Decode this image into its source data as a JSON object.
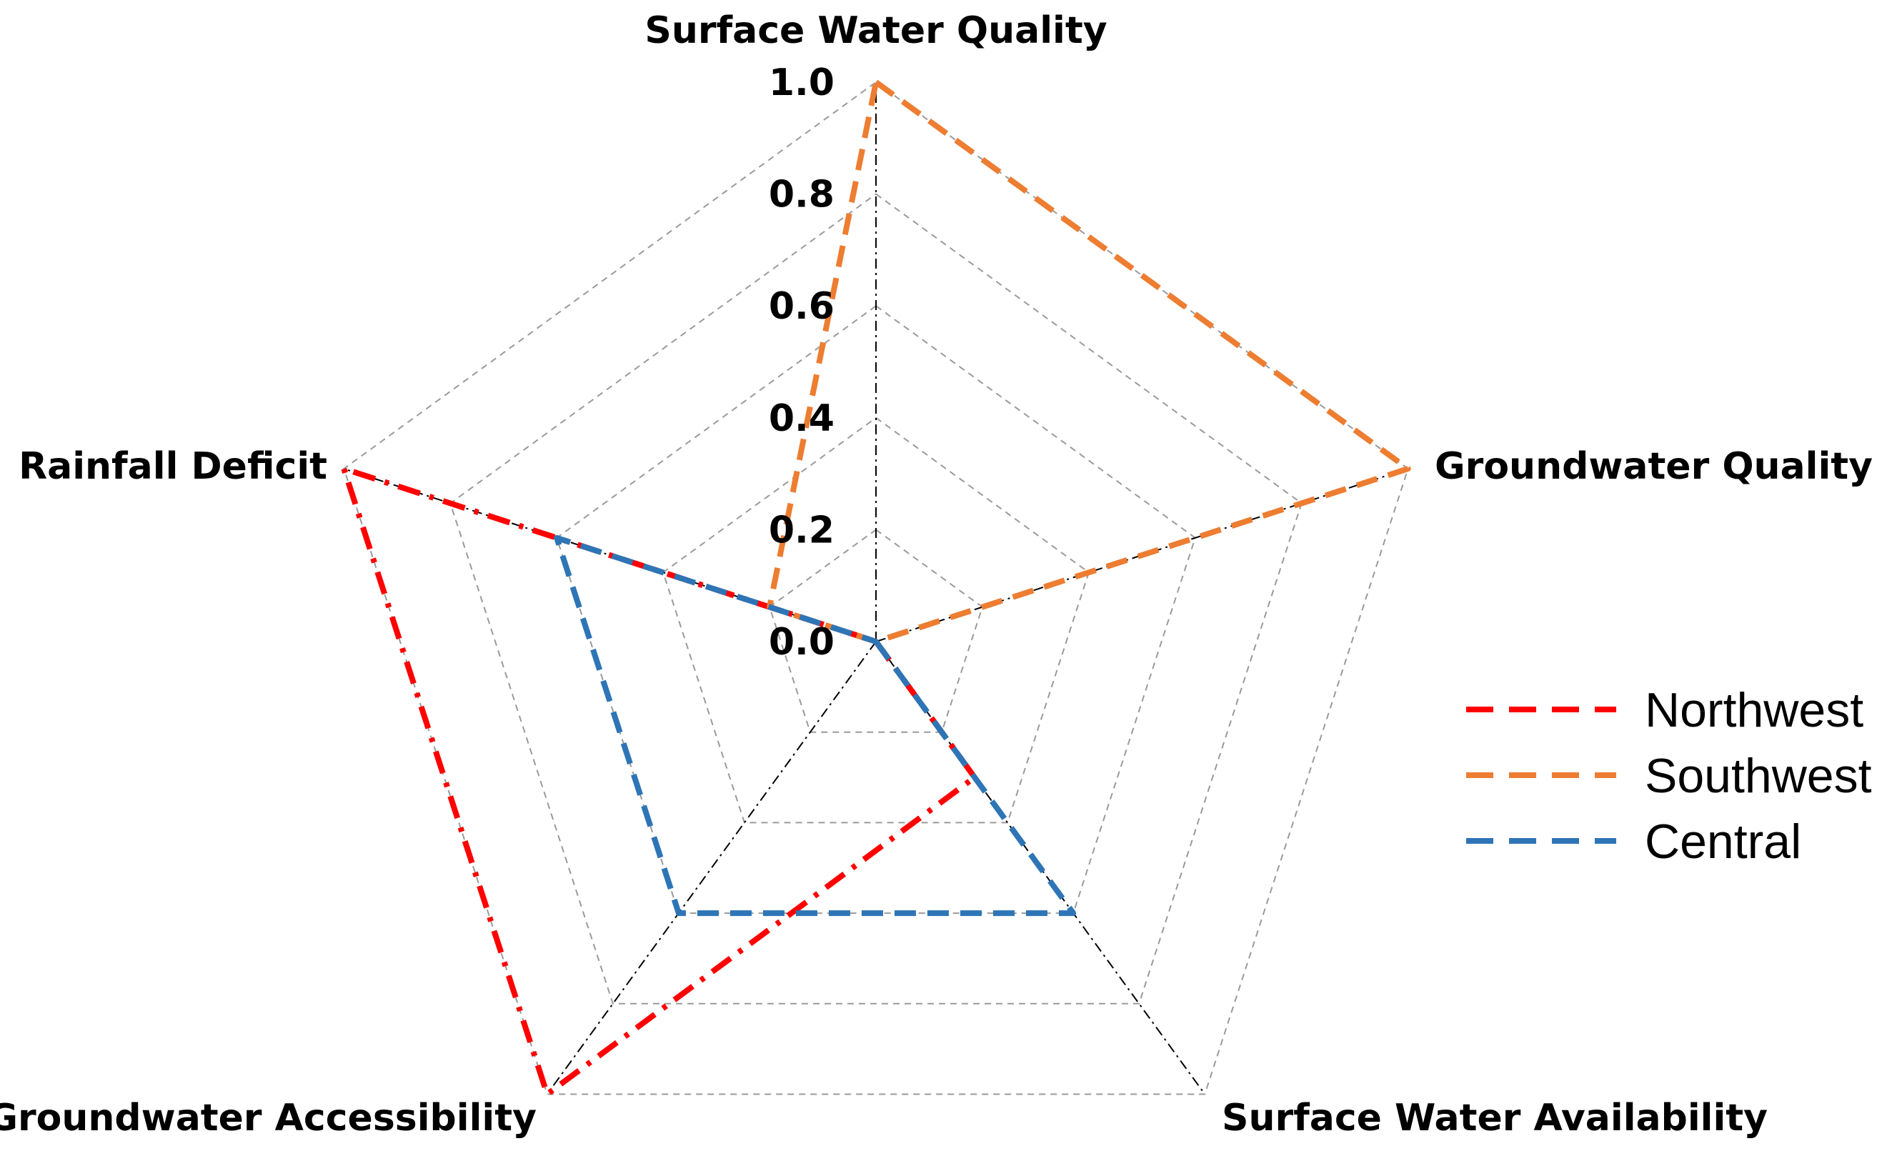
{
  "chart_data": {
    "type": "radar",
    "title": "",
    "axes": [
      "Surface Water Quality",
      "Groundwater Quality",
      "Surface Water Availability",
      "Groundwater Accessibility",
      "Rainfall Deficit"
    ],
    "range": [
      0,
      1
    ],
    "ticks": [
      "0.0",
      "0.2",
      "0.4",
      "0.6",
      "0.8",
      "1.0"
    ],
    "tick_values": [
      0,
      0.2,
      0.4,
      0.6,
      0.8,
      1.0
    ],
    "series": [
      {
        "name": "Northwest",
        "color": "#ff0000",
        "dash": "dash-dot",
        "values": [
          0,
          0,
          0.3,
          1.0,
          1.0
        ]
      },
      {
        "name": "Southwest",
        "color": "#ed7d31",
        "dash": "dash",
        "values": [
          1.0,
          1.0,
          0,
          0,
          0.2
        ]
      },
      {
        "name": "Central",
        "color": "#2e75b6",
        "dash": "dash",
        "values": [
          0,
          0,
          0.6,
          0.6,
          0.6
        ]
      }
    ],
    "legend": {
      "position": "right",
      "items": [
        "Northwest",
        "Southwest",
        "Central"
      ],
      "style": "dashed"
    }
  }
}
